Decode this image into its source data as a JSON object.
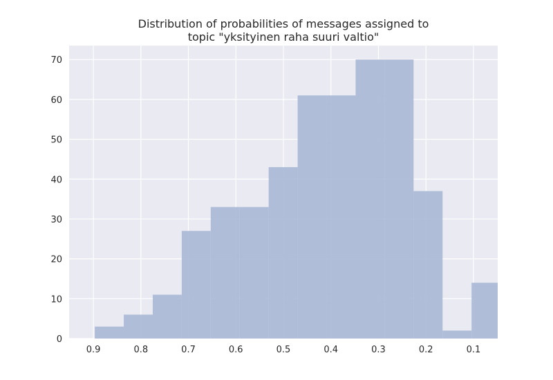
{
  "chart_data": {
    "type": "bar",
    "title_lines": [
      "Distribution of probabilities of messages assigned to",
      "topic \"yksityinen raha suuri valtio\""
    ],
    "xlabel": "",
    "ylabel": "",
    "x_reversed": true,
    "xlim": [
      0.951,
      0.049
    ],
    "ylim": [
      0,
      73.5
    ],
    "x_ticks": [
      0.9,
      0.8,
      0.7,
      0.6,
      0.5,
      0.4,
      0.3,
      0.2,
      0.1
    ],
    "x_tick_labels": [
      "0.9",
      "0.8",
      "0.7",
      "0.6",
      "0.5",
      "0.4",
      "0.3",
      "0.2",
      "0.1"
    ],
    "y_ticks": [
      0,
      10,
      20,
      30,
      40,
      50,
      60,
      70
    ],
    "y_tick_labels": [
      "0",
      "10",
      "20",
      "30",
      "40",
      "50",
      "60",
      "70"
    ],
    "bin_edges": [
      0.897,
      0.836,
      0.775,
      0.714,
      0.653,
      0.592,
      0.531,
      0.47,
      0.409,
      0.348,
      0.287,
      0.226,
      0.165,
      0.104,
      0.043
    ],
    "values": [
      3,
      6,
      11,
      27,
      33,
      33,
      43,
      61,
      61,
      70,
      70,
      37,
      2,
      14
    ],
    "grid": true,
    "bar_color": "#a9b8d6",
    "plot_background": "#eaeaf2",
    "grid_color": "#ffffff"
  }
}
